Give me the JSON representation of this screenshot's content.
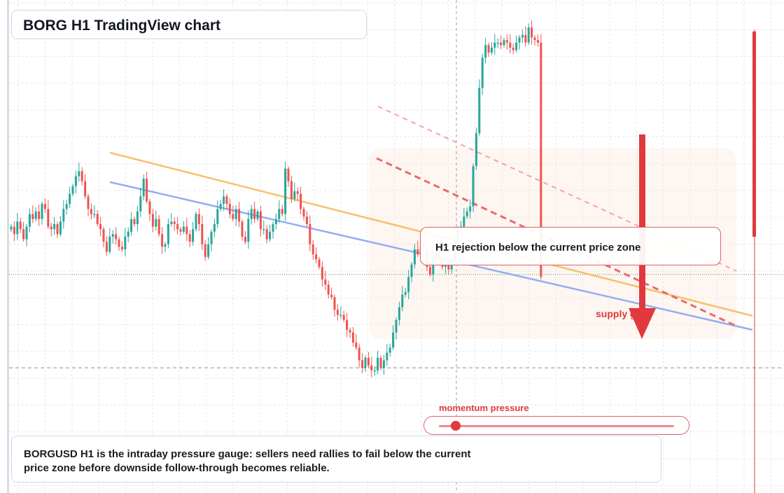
{
  "title": "BORG H1 TradingView chart",
  "callout_text": "H1 rejection below the current price zone",
  "supply_label": "supply gate",
  "gauge": {
    "label": "momentum pressure",
    "level": 0.07
  },
  "note": "BORGUSD H1 is the intraday pressure gauge: sellers need rallies to fail below the current price zone before downside follow-through becomes reliable.",
  "colors": {
    "up": "#26a69a",
    "down": "#ef5350",
    "accent": "#e0393e",
    "trend_orange": "#f7c16a",
    "trend_blue": "#93aef3",
    "grid": "#e4e7ed"
  },
  "chart_data": {
    "type": "candlestick",
    "symbol": "BORGUSD",
    "timeframe": "H1",
    "closes": [
      0.2,
      0.05,
      0.3,
      0.15,
      -0.05,
      0.2,
      0.45,
      0.35,
      0.5,
      0.35,
      0.65,
      0.55,
      0.2,
      0.15,
      0.25,
      0.05,
      0.3,
      0.55,
      0.65,
      0.85,
      1.0,
      1.2,
      1.3,
      1.1,
      0.8,
      0.55,
      0.45,
      0.45,
      0.25,
      0.15,
      -0.1,
      -0.3,
      0.0,
      0.05,
      -0.05,
      -0.2,
      -0.25,
      0.0,
      0.1,
      0.35,
      0.25,
      0.5,
      0.8,
      1.15,
      0.7,
      0.45,
      0.2,
      0.35,
      0.05,
      -0.2,
      -0.15,
      0.25,
      0.3,
      0.25,
      0.15,
      0.1,
      0.2,
      0.05,
      -0.1,
      0.15,
      0.45,
      0.25,
      -0.15,
      -0.4,
      -0.15,
      0.1,
      0.25,
      0.55,
      0.65,
      0.8,
      0.65,
      0.45,
      0.35,
      0.55,
      0.3,
      0.0,
      -0.1,
      0.35,
      0.55,
      0.35,
      0.5,
      0.15,
      0.15,
      -0.05,
      0.1,
      0.25,
      0.35,
      0.55,
      0.45,
      1.35,
      1.1,
      0.75,
      0.9,
      0.85,
      0.55,
      0.4,
      0.25,
      -0.15,
      -0.35,
      -0.45,
      -0.6,
      -0.85,
      -0.95,
      -1.15,
      -1.2,
      -1.45,
      -1.55,
      -1.55,
      -1.65,
      -1.85,
      -1.9,
      -2.1,
      -2.2,
      -2.45,
      -2.6,
      -2.4,
      -2.55,
      -2.65,
      -2.65,
      -2.4,
      -2.6,
      -2.45,
      -2.3,
      -2.2,
      -1.9,
      -1.65,
      -1.4,
      -1.15,
      -1.1,
      -0.8,
      -0.55,
      -0.25,
      -0.35,
      -0.2,
      -0.25,
      -0.6,
      -0.75,
      -0.4,
      -0.3,
      -0.45,
      -0.6,
      -0.55,
      -0.65,
      -0.45,
      -0.1,
      0.15,
      0.2,
      0.4,
      0.5,
      0.6,
      1.4,
      2.05,
      2.95,
      3.55,
      3.8,
      3.65,
      3.75,
      3.85,
      3.85,
      3.8,
      3.9,
      3.85,
      3.75,
      3.7,
      3.85,
      3.95,
      4.0,
      3.85,
      4.15,
      3.95,
      3.9,
      3.85,
      -0.8
    ],
    "horizontal_levels": [
      -0.75,
      -2.6
    ],
    "trendlines": [
      "orange support",
      "blue support",
      "red dashed resistance",
      "light red dashed channel"
    ],
    "annotations": [
      "H1 rejection below the current price zone",
      "supply gate",
      "momentum pressure"
    ],
    "grid": true
  }
}
